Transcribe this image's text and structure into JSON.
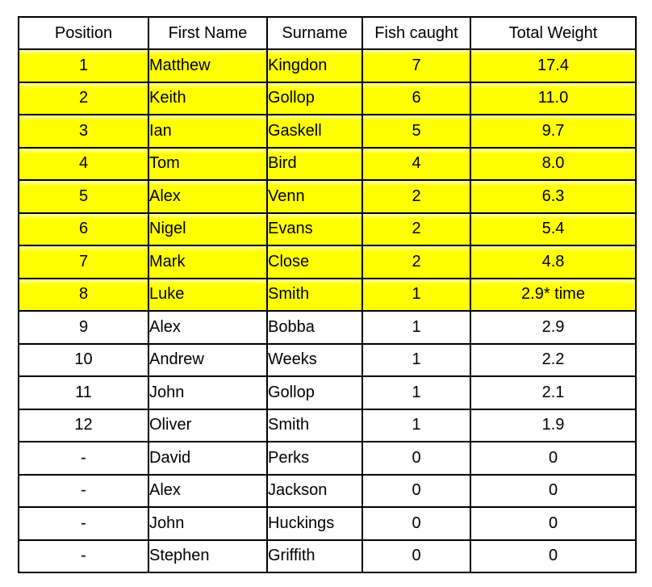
{
  "chart_data": {
    "type": "table",
    "title": "",
    "columns": [
      "Position",
      "First Name",
      "Surname",
      "Fish caught",
      "Total Weight"
    ],
    "rows": [
      {
        "position": "1",
        "first_name": "Matthew",
        "surname": "Kingdon",
        "fish_caught": "7",
        "total_weight": "17.4",
        "highlighted": true
      },
      {
        "position": "2",
        "first_name": "Keith",
        "surname": "Gollop",
        "fish_caught": "6",
        "total_weight": "11.0",
        "highlighted": true
      },
      {
        "position": "3",
        "first_name": "Ian",
        "surname": "Gaskell",
        "fish_caught": "5",
        "total_weight": "9.7",
        "highlighted": true
      },
      {
        "position": "4",
        "first_name": "Tom",
        "surname": "Bird",
        "fish_caught": "4",
        "total_weight": "8.0",
        "highlighted": true
      },
      {
        "position": "5",
        "first_name": "Alex",
        "surname": "Venn",
        "fish_caught": "2",
        "total_weight": "6.3",
        "highlighted": true
      },
      {
        "position": "6",
        "first_name": "Nigel",
        "surname": "Evans",
        "fish_caught": "2",
        "total_weight": "5.4",
        "highlighted": true
      },
      {
        "position": "7",
        "first_name": "Mark",
        "surname": "Close",
        "fish_caught": "2",
        "total_weight": "4.8",
        "highlighted": true
      },
      {
        "position": "8",
        "first_name": "Luke",
        "surname": "Smith",
        "fish_caught": "1",
        "total_weight": "2.9* time",
        "highlighted": true
      },
      {
        "position": "9",
        "first_name": "Alex",
        "surname": "Bobba",
        "fish_caught": "1",
        "total_weight": "2.9",
        "highlighted": false
      },
      {
        "position": "10",
        "first_name": "Andrew",
        "surname": "Weeks",
        "fish_caught": "1",
        "total_weight": "2.2",
        "highlighted": false
      },
      {
        "position": "11",
        "first_name": "John",
        "surname": "Gollop",
        "fish_caught": "1",
        "total_weight": "2.1",
        "highlighted": false
      },
      {
        "position": "12",
        "first_name": "Oliver",
        "surname": "Smith",
        "fish_caught": "1",
        "total_weight": "1.9",
        "highlighted": false
      },
      {
        "position": "-",
        "first_name": "David",
        "surname": "Perks",
        "fish_caught": "0",
        "total_weight": "0",
        "highlighted": false
      },
      {
        "position": "-",
        "first_name": "Alex",
        "surname": "Jackson",
        "fish_caught": "0",
        "total_weight": "0",
        "highlighted": false
      },
      {
        "position": "-",
        "first_name": "John",
        "surname": "Huckings",
        "fish_caught": "0",
        "total_weight": "0",
        "highlighted": false
      },
      {
        "position": "-",
        "first_name": "Stephen",
        "surname": "Griffith",
        "fish_caught": "0",
        "total_weight": "0",
        "highlighted": false
      }
    ]
  },
  "colors": {
    "highlight": "#FFFF00",
    "border": "#000000",
    "text": "#000000",
    "header_bg": "#FFFFFF"
  }
}
